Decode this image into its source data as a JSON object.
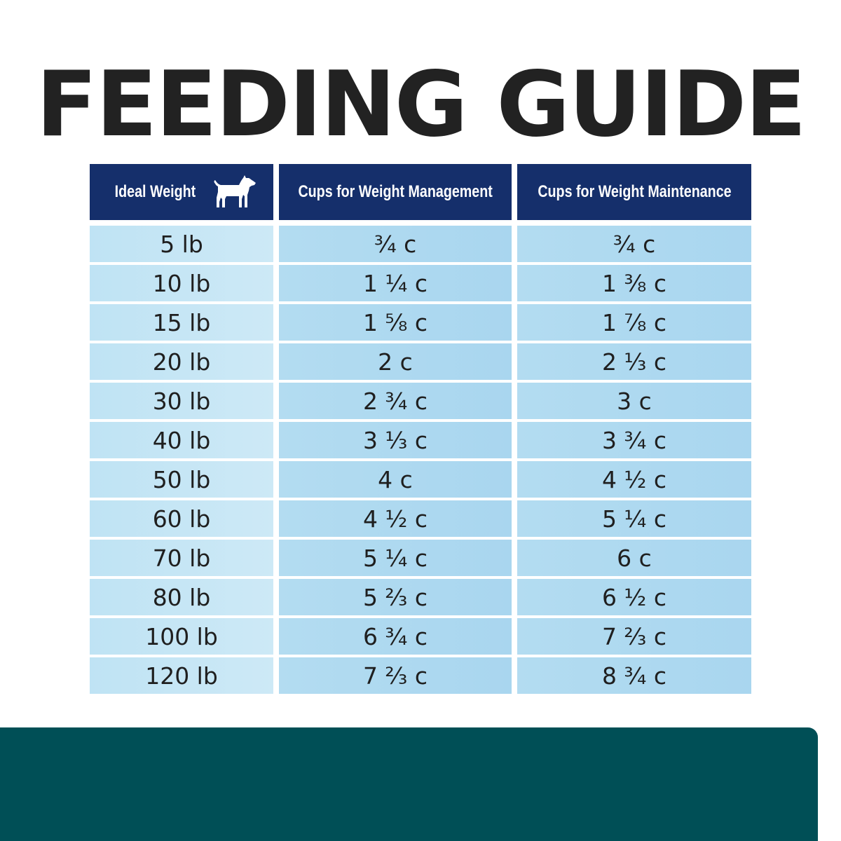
{
  "title": "FEEDING GUIDE",
  "table": {
    "headers": {
      "weight": "Ideal Weight",
      "management": "Cups for Weight Management",
      "maintenance": "Cups for Weight Maintenance"
    },
    "header_icon": "dog-icon",
    "rows": [
      {
        "weight": "5 lb",
        "management": "¾ c",
        "maintenance": "¾ c"
      },
      {
        "weight": "10 lb",
        "management": "1 ¼ c",
        "maintenance": "1 ⅜ c"
      },
      {
        "weight": "15 lb",
        "management": "1 ⅝ c",
        "maintenance": "1 ⅞ c"
      },
      {
        "weight": "20 lb",
        "management": "2 c",
        "maintenance": "2 ⅓ c"
      },
      {
        "weight": "30 lb",
        "management": "2 ¾ c",
        "maintenance": "3 c"
      },
      {
        "weight": "40 lb",
        "management": "3 ⅓ c",
        "maintenance": "3 ¾ c"
      },
      {
        "weight": "50 lb",
        "management": "4 c",
        "maintenance": "4 ½ c"
      },
      {
        "weight": "60 lb",
        "management": "4 ½ c",
        "maintenance": "5 ¼ c"
      },
      {
        "weight": "70 lb",
        "management": "5 ¼ c",
        "maintenance": "6 c"
      },
      {
        "weight": "80 lb",
        "management": "5 ⅔ c",
        "maintenance": "6 ½ c"
      },
      {
        "weight": "100 lb",
        "management": "6 ¾ c",
        "maintenance": "7 ⅔ c"
      },
      {
        "weight": "120 lb",
        "management": "7 ⅔ c",
        "maintenance": "8 ¾ c"
      }
    ]
  },
  "colors": {
    "header_bg": "#152f6b",
    "cell_bg": "#b3dcf1",
    "bottom_bar": "#004f56",
    "title": "#222222"
  }
}
